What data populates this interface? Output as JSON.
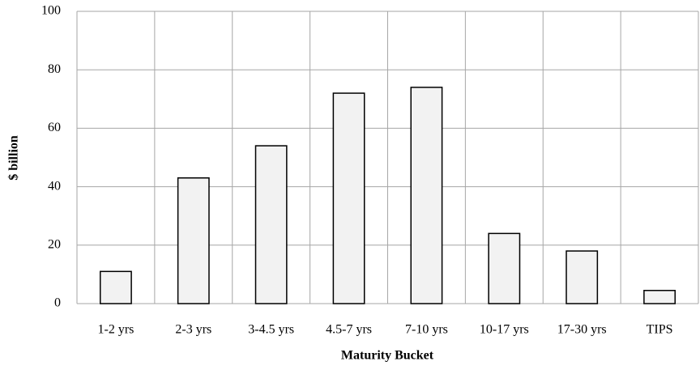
{
  "chart_data": {
    "type": "bar",
    "x_label": "Maturity Bucket",
    "y_label": "$ billion",
    "categories": [
      "1-2 yrs",
      "2-3 yrs",
      "3-4.5 yrs",
      "4.5-7 yrs",
      "7-10 yrs",
      "10-17 yrs",
      "17-30 yrs",
      "TIPS"
    ],
    "values": [
      11,
      43,
      54,
      72,
      74,
      24,
      18,
      4.5
    ],
    "color": "#f2f2f2",
    "ylim": [
      0,
      100
    ],
    "yticks": [
      0,
      20,
      40,
      60,
      80,
      100
    ],
    "grid": true
  }
}
